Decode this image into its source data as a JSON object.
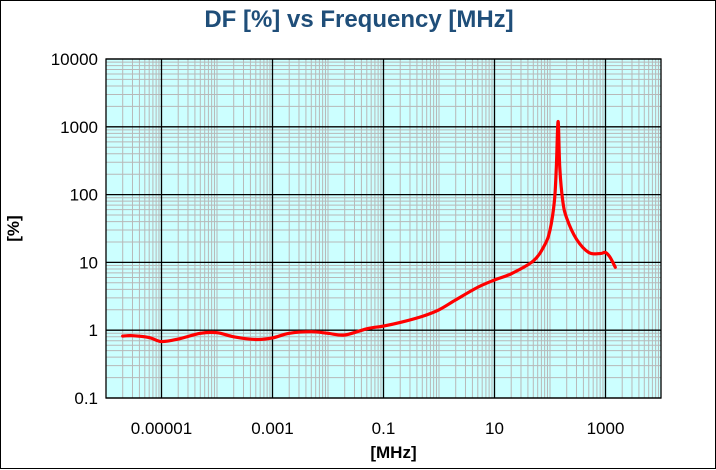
{
  "colors": {
    "title": "#1F4E79",
    "plot_background": "#CCFFFF",
    "minor_grid": "#B8B8B8",
    "major_grid": "#000000",
    "series_line": "#FF0000"
  },
  "chart_data": {
    "type": "line",
    "title": "DF [%] vs Frequency [MHz]",
    "xlabel": "[MHz]",
    "ylabel": "[%]",
    "x_scale": "log",
    "y_scale": "log",
    "xlim": [
      1e-06,
      10000
    ],
    "ylim": [
      0.1,
      10000
    ],
    "x_ticks": [
      1e-05,
      0.001,
      0.1,
      10,
      1000
    ],
    "x_tick_labels": [
      "0.00001",
      "0.001",
      "0.1",
      "10",
      "1000"
    ],
    "y_ticks": [
      0.1,
      1,
      10,
      100,
      1000,
      10000
    ],
    "y_tick_labels": [
      "0.1",
      "1",
      "10",
      "100",
      "1000",
      "10000"
    ],
    "grid": true,
    "legend": "none",
    "series": [
      {
        "x": [
          2e-06,
          3e-06,
          6e-06,
          1e-05,
          2e-05,
          5e-05,
          0.0001,
          0.0002,
          0.0005,
          0.001,
          0.002,
          0.005,
          0.01,
          0.02,
          0.05,
          0.1,
          0.2,
          0.5,
          1,
          2,
          5,
          10,
          20,
          50,
          80,
          100,
          120,
          130,
          140,
          150,
          170,
          200,
          300,
          500,
          800,
          1000,
          1200,
          1500
        ],
        "y": [
          0.82,
          0.83,
          0.78,
          0.68,
          0.74,
          0.9,
          0.92,
          0.8,
          0.73,
          0.77,
          0.9,
          0.95,
          0.9,
          0.85,
          1.05,
          1.15,
          1.3,
          1.6,
          2.0,
          2.8,
          4.3,
          5.5,
          6.8,
          10.5,
          18,
          30,
          80,
          250,
          1200,
          250,
          80,
          45,
          22,
          14,
          13.5,
          14,
          12,
          8.5
        ]
      }
    ]
  }
}
